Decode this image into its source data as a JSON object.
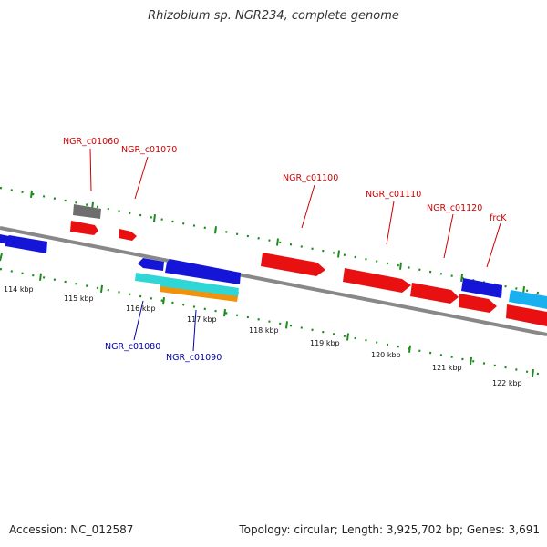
{
  "header": {
    "title": "Rhizobium sp. NGR234, complete genome"
  },
  "footer": {
    "accession": "Accession: NC_012587",
    "stats": "Topology: circular; Length: 3,925,702 bp; Genes: 3,691"
  },
  "colors": {
    "backbone": "#888888",
    "tick": "#1a8c1a",
    "label_red": "#cc0000",
    "label_blue": "#0000aa",
    "gene_red": "#e81010",
    "gene_blue": "#1515d8",
    "gene_cyan": "#2fd6d6",
    "gene_orange": "#f0920a",
    "gene_gray": "#6e6e6e",
    "gene_lightblue": "#18b0ee"
  },
  "scale": {
    "labels": [
      "114 kbp",
      "115 kbp",
      "116 kbp",
      "117 kbp",
      "118 kbp",
      "119 kbp",
      "120 kbp",
      "121 kbp",
      "122 kbp"
    ]
  },
  "genes": {
    "labels": [
      {
        "text": "NGR_c01060",
        "color": "red"
      },
      {
        "text": "NGR_c01070",
        "color": "red"
      },
      {
        "text": "NGR_c01100",
        "color": "red"
      },
      {
        "text": "NGR_c01110",
        "color": "red"
      },
      {
        "text": "NGR_c01120",
        "color": "red"
      },
      {
        "text": "frcK",
        "color": "red"
      },
      {
        "text": "NGR_c01080",
        "color": "blue"
      },
      {
        "text": "NGR_c01090",
        "color": "blue"
      }
    ]
  }
}
